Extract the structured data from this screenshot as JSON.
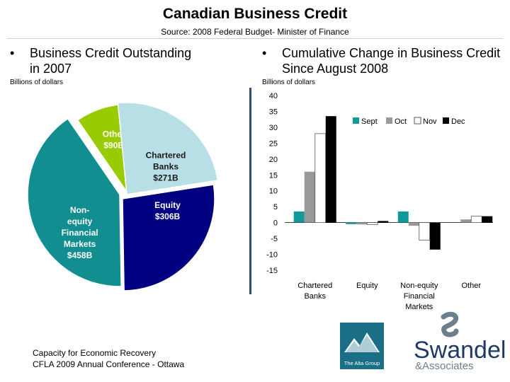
{
  "title": "Canadian Business Credit",
  "source": "Source: 2008 Federal Budget- Minister of Finance",
  "left_panel": {
    "bullet": "•",
    "heading_line1": "Business Credit Outstanding",
    "heading_line2": "in 2007",
    "unit": "Billions of dollars"
  },
  "right_panel": {
    "bullet": "•",
    "heading_line1": "Cumulative Change in Business Credit",
    "heading_line2": "Since August 2008",
    "unit": "Billions of dollars"
  },
  "footer": {
    "line1": "Capacity for Economic Recovery",
    "line2": "CFLA 2009 Annual Conference - Ottawa"
  },
  "logos": {
    "alta": "The Alta Group",
    "swandel_line1": "Swandel",
    "swandel_line2": "&Associates"
  },
  "colors": {
    "pie_other": "#99cc00",
    "pie_banks": "#b9dfe6",
    "pie_equity": "#000080",
    "pie_nonequity": "#138e90",
    "sept": "#109a9b",
    "oct": "#999999",
    "nov": "#ffffff",
    "dec": "#000000"
  },
  "chart_data": [
    {
      "type": "pie",
      "unit": "Billions of dollars",
      "slices": [
        {
          "key": "other",
          "lines": [
            "Other",
            "$90B"
          ],
          "value": 90
        },
        {
          "key": "banks",
          "lines": [
            "Chartered",
            "Banks",
            "$271B"
          ],
          "value": 271
        },
        {
          "key": "equity",
          "lines": [
            "Equity",
            "$306B"
          ],
          "value": 306
        },
        {
          "key": "nonequity",
          "lines": [
            "Non-",
            "equity",
            "Financial",
            "Markets",
            "$458B"
          ],
          "value": 458
        }
      ]
    },
    {
      "type": "bar",
      "unit": "Billions of dollars",
      "ylim": [
        -15,
        40
      ],
      "yticks": [
        40,
        35,
        30,
        25,
        20,
        15,
        10,
        5,
        0,
        -5,
        -10,
        -15
      ],
      "categories": [
        [
          "Chartered",
          "Banks"
        ],
        [
          "Equity"
        ],
        [
          "Non-equity",
          "Financial",
          "Markets"
        ],
        [
          "Other"
        ]
      ],
      "series": [
        {
          "name": "Sept",
          "key": "sept",
          "values": [
            3.5,
            -0.5,
            3.5,
            0
          ]
        },
        {
          "name": "Oct",
          "key": "oct",
          "values": [
            16,
            -0.6,
            -1,
            1
          ]
        },
        {
          "name": "Nov",
          "key": "nov",
          "values": [
            28,
            -0.6,
            -5.5,
            2
          ]
        },
        {
          "name": "Dec",
          "key": "dec",
          "values": [
            33.5,
            0.5,
            -8.5,
            2
          ]
        }
      ]
    }
  ]
}
